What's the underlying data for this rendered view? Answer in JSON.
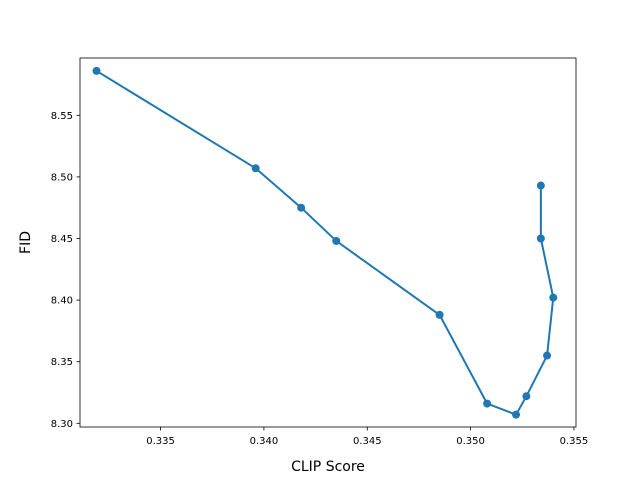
{
  "chart_data": {
    "type": "line",
    "title": "",
    "xlabel": "CLIP Score",
    "ylabel": "FID",
    "xlim": [
      0.3311,
      0.3551
    ],
    "ylim": [
      8.297,
      8.5965
    ],
    "grid": false,
    "legend": "none",
    "x_ticks": [
      0.335,
      0.34,
      0.345,
      0.35,
      0.355
    ],
    "x_tick_labels": [
      "0.335",
      "0.340",
      "0.345",
      "0.350",
      "0.355"
    ],
    "y_ticks": [
      8.3,
      8.35,
      8.4,
      8.45,
      8.5,
      8.55
    ],
    "y_tick_labels": [
      "8.30",
      "8.35",
      "8.40",
      "8.45",
      "8.50",
      "8.55"
    ],
    "series": [
      {
        "color": "#1f77b4",
        "marker": "circle",
        "points": [
          {
            "x": 0.3319,
            "y": 8.586
          },
          {
            "x": 0.3396,
            "y": 8.507
          },
          {
            "x": 0.3418,
            "y": 8.475
          },
          {
            "x": 0.3435,
            "y": 8.448
          },
          {
            "x": 0.3485,
            "y": 8.388
          },
          {
            "x": 0.3508,
            "y": 8.316
          },
          {
            "x": 0.3522,
            "y": 8.307
          },
          {
            "x": 0.3527,
            "y": 8.322
          },
          {
            "x": 0.3537,
            "y": 8.355
          },
          {
            "x": 0.354,
            "y": 8.402
          },
          {
            "x": 0.3534,
            "y": 8.45
          },
          {
            "x": 0.3534,
            "y": 8.493
          }
        ]
      }
    ]
  }
}
